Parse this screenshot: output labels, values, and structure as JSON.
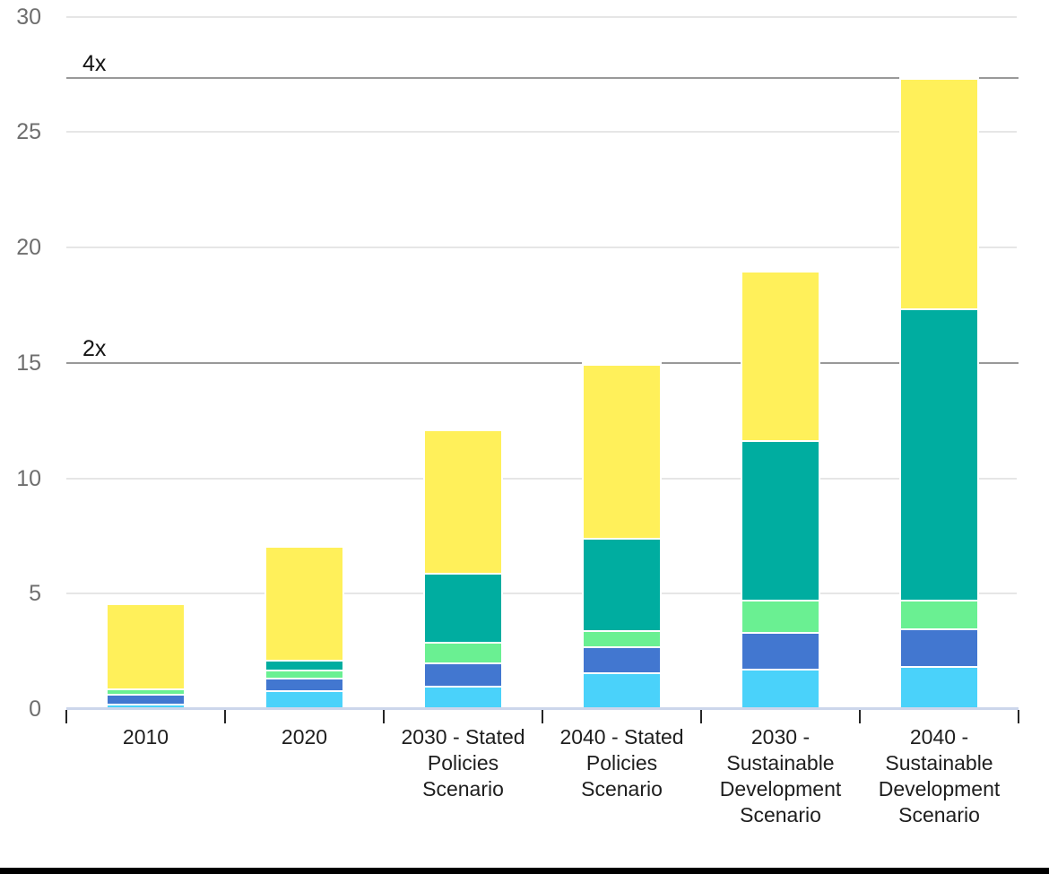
{
  "chart_data": {
    "type": "bar",
    "stacked": true,
    "title": "",
    "xlabel": "",
    "ylabel": "",
    "ylim": [
      0,
      30
    ],
    "y_ticks": [
      0,
      5,
      10,
      15,
      20,
      25,
      30
    ],
    "grid": "horizontal",
    "legend_position": "none",
    "categories": [
      "2010",
      "2020",
      "2030 - Stated Policies Scenario",
      "2040 - Stated Policies Scenario",
      "2030 - Sustainable Development Scenario",
      "2040 - Sustainable Development Scenario"
    ],
    "category_label_lines": [
      [
        "2010"
      ],
      [
        "2020"
      ],
      [
        "2030 - Stated",
        "Policies",
        "Scenario"
      ],
      [
        "2040 - Stated",
        "Policies",
        "Scenario"
      ],
      [
        "2030 -",
        "Sustainable",
        "Development",
        "Scenario"
      ],
      [
        "2040 -",
        "Sustainable",
        "Development",
        "Scenario"
      ]
    ],
    "series": [
      {
        "name": "sky-blue-segment",
        "color": "#4AD2FA",
        "values": [
          0.25,
          0.8,
          1.0,
          1.6,
          1.75,
          1.85
        ]
      },
      {
        "name": "blue-segment",
        "color": "#4277D0",
        "values": [
          0.4,
          0.55,
          1.0,
          1.1,
          1.6,
          1.65
        ]
      },
      {
        "name": "green-segment",
        "color": "#6AF092",
        "values": [
          0.25,
          0.35,
          0.9,
          0.7,
          1.4,
          1.25
        ]
      },
      {
        "name": "teal-segment",
        "color": "#00ADA0",
        "values": [
          0.0,
          0.45,
          3.0,
          4.0,
          6.9,
          12.6
        ]
      },
      {
        "name": "yellow-segment",
        "color": "#FFF05A",
        "values": [
          3.7,
          4.9,
          6.2,
          7.55,
          7.35,
          10.0
        ]
      }
    ],
    "bar_totals": [
      4.6,
      7.05,
      12.1,
      14.95,
      19.0,
      27.35
    ],
    "reference_lines": [
      {
        "label": "2x",
        "value": 15.0
      },
      {
        "label": "4x",
        "value": 27.35
      }
    ],
    "colors": {
      "grid_line": "#E6E6E6",
      "axis_line": "#CCD6EB",
      "reference_line": "#999999",
      "y_label_text": "#6E6E6E",
      "x_label_text": "#1E1E1E",
      "tick_mark": "#262626",
      "bottom_border": "#000000"
    }
  }
}
